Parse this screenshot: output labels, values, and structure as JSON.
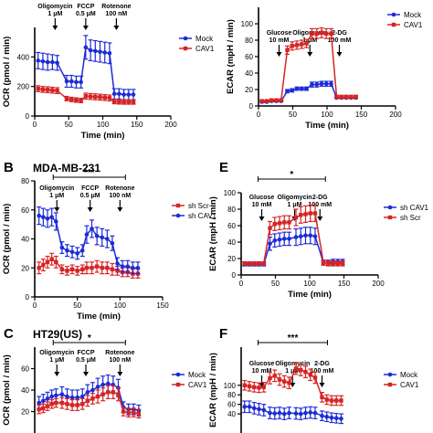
{
  "chart_data": [
    {
      "id": "A",
      "panel_letter": "",
      "title": "",
      "type": "line",
      "xlabel": "Time (min)",
      "ylabel": "OCR (pmol / min)",
      "xlim": [
        0,
        200
      ],
      "ylim": [
        0,
        600
      ],
      "xticks": [
        0,
        50,
        100,
        150,
        200
      ],
      "yticks": [
        0,
        200,
        400
      ],
      "significance": "",
      "annotations": [
        {
          "lines": [
            "Oligomycin",
            "1 μM"
          ],
          "x": 30
        },
        {
          "lines": [
            "FCCP",
            "0.5 μM"
          ],
          "x": 75
        },
        {
          "lines": [
            "Rotenone",
            "100 nM"
          ],
          "x": 120
        }
      ],
      "series": [
        {
          "name": "Mock",
          "color": "#1c2bd6",
          "marker": "circle",
          "x": [
            5,
            12,
            19,
            26,
            33,
            47,
            54,
            61,
            68,
            75,
            82,
            89,
            96,
            103,
            110,
            117,
            124,
            131,
            138,
            145
          ],
          "y": [
            375,
            370,
            365,
            365,
            360,
            235,
            235,
            230,
            230,
            465,
            445,
            440,
            435,
            430,
            425,
            150,
            150,
            145,
            145,
            145
          ],
          "err": [
            55,
            55,
            55,
            50,
            50,
            40,
            40,
            40,
            40,
            80,
            70,
            70,
            70,
            70,
            70,
            35,
            35,
            35,
            35,
            35
          ]
        },
        {
          "name": "CAV1",
          "color": "#d62424",
          "marker": "square",
          "x": [
            5,
            12,
            19,
            26,
            33,
            47,
            54,
            61,
            68,
            75,
            82,
            89,
            96,
            103,
            110,
            117,
            124,
            131,
            138,
            145
          ],
          "y": [
            185,
            180,
            178,
            175,
            172,
            118,
            112,
            108,
            105,
            135,
            132,
            130,
            128,
            125,
            122,
            98,
            96,
            95,
            95,
            95
          ],
          "err": [
            20,
            20,
            20,
            20,
            20,
            15,
            15,
            15,
            15,
            20,
            20,
            20,
            20,
            20,
            20,
            15,
            15,
            15,
            15,
            15
          ]
        }
      ]
    },
    {
      "id": "D",
      "panel_letter": "",
      "title": "",
      "type": "line",
      "xlabel": "Time (min)",
      "ylabel": "ECAR (mpH / min)",
      "xlim": [
        0,
        200
      ],
      "ylim": [
        0,
        120
      ],
      "xticks": [
        0,
        50,
        100,
        150,
        200
      ],
      "yticks": [
        0,
        20,
        40,
        60,
        80,
        100
      ],
      "significance": "",
      "annotations": [
        {
          "lines": [
            "Glucose",
            "10 mM"
          ],
          "x": 30
        },
        {
          "lines": [
            "Oligomycin",
            "1 μM"
          ],
          "x": 75
        },
        {
          "lines": [
            "2-DG",
            "100 mM"
          ],
          "x": 118
        }
      ],
      "series": [
        {
          "name": "Mock",
          "color": "#1c2bd6",
          "marker": "circle",
          "x": [
            5,
            12,
            19,
            26,
            33,
            42,
            49,
            56,
            63,
            70,
            78,
            85,
            92,
            99,
            106,
            114,
            121,
            128,
            135,
            142
          ],
          "y": [
            5,
            5,
            6,
            6,
            6,
            18,
            19,
            21,
            21,
            21,
            26,
            26,
            27,
            27,
            27,
            10,
            10,
            10,
            10,
            10
          ],
          "err": [
            1,
            1,
            1,
            1,
            1,
            2,
            2,
            2,
            2,
            2,
            3,
            3,
            3,
            3,
            3,
            1,
            1,
            1,
            1,
            1
          ]
        },
        {
          "name": "CAV1",
          "color": "#d62424",
          "marker": "square",
          "x": [
            5,
            12,
            19,
            26,
            33,
            42,
            49,
            56,
            63,
            70,
            78,
            85,
            92,
            99,
            106,
            114,
            121,
            128,
            135,
            142
          ],
          "y": [
            6,
            6,
            7,
            7,
            7,
            68,
            73,
            74,
            75,
            76,
            88,
            88,
            89,
            88,
            88,
            11,
            11,
            11,
            11,
            11
          ],
          "err": [
            1,
            1,
            1,
            1,
            1,
            5,
            5,
            5,
            5,
            5,
            6,
            6,
            6,
            6,
            6,
            2,
            2,
            2,
            2,
            2
          ]
        }
      ]
    },
    {
      "id": "B",
      "panel_letter": "B",
      "title": "MDA-MB-231",
      "type": "line",
      "xlabel": "Time (min)",
      "ylabel": "OCR (pmol / min)",
      "xlim": [
        0,
        150
      ],
      "ylim": [
        0,
        80
      ],
      "xticks": [
        0,
        50,
        100,
        150
      ],
      "yticks": [
        0,
        20,
        40,
        60,
        80
      ],
      "significance": "***",
      "annotations": [
        {
          "lines": [
            "Oligomycin",
            "1 μM"
          ],
          "x": 26
        },
        {
          "lines": [
            "FCCP",
            "0.5 μM"
          ],
          "x": 65
        },
        {
          "lines": [
            "Rotenone",
            "100 nM"
          ],
          "x": 100
        }
      ],
      "series": [
        {
          "name": "sh Scr",
          "color": "#d62424",
          "marker": "square",
          "x": [
            5,
            10,
            15,
            20,
            25,
            32,
            38,
            44,
            50,
            56,
            61,
            67,
            73,
            79,
            85,
            91,
            97,
            103,
            109,
            115,
            121
          ],
          "y": [
            20,
            22,
            24,
            26,
            24,
            19,
            18,
            19,
            18,
            19,
            20,
            20,
            21,
            20,
            20,
            19,
            18,
            17,
            17,
            16,
            16
          ],
          "err": [
            4,
            4,
            4,
            4,
            4,
            3,
            3,
            3,
            3,
            3,
            4,
            4,
            4,
            4,
            4,
            4,
            3,
            3,
            3,
            3,
            3
          ]
        },
        {
          "name": "sh CAV1",
          "color": "#1c2bd6",
          "marker": "circle",
          "x": [
            5,
            10,
            15,
            20,
            25,
            32,
            38,
            44,
            50,
            56,
            61,
            67,
            73,
            79,
            85,
            91,
            97,
            103,
            109,
            115,
            121
          ],
          "y": [
            56,
            55,
            54,
            55,
            52,
            34,
            32,
            31,
            30,
            32,
            43,
            47,
            42,
            41,
            40,
            37,
            23,
            21,
            21,
            20,
            20
          ],
          "err": [
            6,
            6,
            6,
            6,
            6,
            4,
            4,
            4,
            4,
            4,
            6,
            6,
            6,
            6,
            6,
            5,
            4,
            4,
            4,
            4,
            4
          ]
        }
      ]
    },
    {
      "id": "E",
      "panel_letter": "E",
      "title": "",
      "type": "line",
      "xlabel": "Time (min)",
      "ylabel": "ECAR (mpH / min)",
      "xlim": [
        0,
        200
      ],
      "ylim": [
        0,
        100
      ],
      "xticks": [
        0,
        50,
        100,
        150,
        200
      ],
      "yticks": [
        0,
        20,
        40,
        60,
        80,
        100
      ],
      "significance": "*",
      "annotations": [
        {
          "lines": [
            "Glucose",
            "10 mM"
          ],
          "x": 30
        },
        {
          "lines": [
            "Oligomycin",
            "1 μM"
          ],
          "x": 78
        },
        {
          "lines": [
            "2-DG",
            "100 mM"
          ],
          "x": 115
        }
      ],
      "series": [
        {
          "name": "sh CAV1",
          "color": "#1c2bd6",
          "marker": "circle",
          "x": [
            5,
            12,
            19,
            26,
            33,
            42,
            49,
            56,
            63,
            70,
            80,
            87,
            94,
            101,
            108,
            120,
            127,
            134,
            141,
            148
          ],
          "y": [
            13,
            13,
            13,
            13,
            13,
            38,
            42,
            43,
            44,
            44,
            46,
            47,
            48,
            48,
            47,
            15,
            15,
            16,
            16,
            16
          ],
          "err": [
            2,
            2,
            2,
            2,
            2,
            8,
            8,
            8,
            8,
            8,
            10,
            10,
            10,
            10,
            10,
            3,
            3,
            3,
            3,
            3
          ]
        },
        {
          "name": "sh Scr",
          "color": "#d62424",
          "marker": "square",
          "x": [
            5,
            12,
            19,
            26,
            33,
            42,
            49,
            56,
            63,
            70,
            80,
            87,
            94,
            101,
            108,
            120,
            127,
            134,
            141,
            148
          ],
          "y": [
            14,
            14,
            14,
            14,
            14,
            57,
            62,
            63,
            64,
            64,
            70,
            73,
            74,
            75,
            75,
            15,
            14,
            14,
            14,
            14
          ],
          "err": [
            2,
            2,
            2,
            2,
            2,
            8,
            8,
            8,
            8,
            8,
            10,
            10,
            10,
            10,
            10,
            3,
            3,
            3,
            3,
            3
          ]
        }
      ]
    },
    {
      "id": "C",
      "panel_letter": "C",
      "title": "HT29(US)",
      "type": "line",
      "xlabel": "",
      "ylabel": "OCR (pmol / min)",
      "xlim": [
        0,
        150
      ],
      "ylim": [
        0,
        80
      ],
      "xticks": [],
      "yticks": [
        20,
        40,
        60
      ],
      "significance": "*",
      "annotations": [
        {
          "lines": [
            "Oligomycin",
            "1 μM"
          ],
          "x": 26
        },
        {
          "lines": [
            "FCCP",
            "0.5 μM"
          ],
          "x": 60
        },
        {
          "lines": [
            "Rotenone",
            "100 nM"
          ],
          "x": 100
        }
      ],
      "series": [
        {
          "name": "Mock",
          "color": "#1c2bd6",
          "marker": "circle",
          "x": [
            5,
            10,
            15,
            20,
            25,
            32,
            38,
            44,
            50,
            56,
            62,
            68,
            74,
            80,
            86,
            92,
            98,
            104,
            110,
            116,
            122
          ],
          "y": [
            28,
            30,
            32,
            34,
            35,
            36,
            34,
            33,
            33,
            34,
            38,
            40,
            43,
            45,
            46,
            45,
            42,
            24,
            22,
            22,
            21
          ],
          "err": [
            6,
            6,
            6,
            6,
            6,
            7,
            7,
            7,
            7,
            7,
            7,
            7,
            8,
            8,
            8,
            8,
            8,
            5,
            5,
            5,
            5
          ]
        },
        {
          "name": "CAV1",
          "color": "#d62424",
          "marker": "square",
          "x": [
            5,
            10,
            15,
            20,
            25,
            32,
            38,
            44,
            50,
            56,
            62,
            68,
            74,
            80,
            86,
            92,
            98,
            104,
            110,
            116,
            122
          ],
          "y": [
            22,
            23,
            25,
            27,
            28,
            28,
            27,
            26,
            26,
            27,
            30,
            32,
            34,
            36,
            38,
            38,
            36,
            20,
            19,
            19,
            18
          ],
          "err": [
            4,
            4,
            4,
            4,
            4,
            5,
            5,
            5,
            5,
            5,
            5,
            5,
            6,
            6,
            6,
            6,
            6,
            4,
            4,
            4,
            4
          ]
        }
      ]
    },
    {
      "id": "F",
      "panel_letter": "F",
      "title": "",
      "type": "line",
      "xlabel": "",
      "ylabel": "ECAR (mpH / min)",
      "xlim": [
        0,
        200
      ],
      "ylim": [
        0,
        180
      ],
      "xticks": [],
      "yticks": [
        40,
        60,
        80,
        100
      ],
      "significance": "***",
      "annotations": [
        {
          "lines": [
            "Glucose",
            "10 mM"
          ],
          "x": 30
        },
        {
          "lines": [
            "Oligomycin",
            "1 μM"
          ],
          "x": 75
        },
        {
          "lines": [
            "2-DG",
            "100 mM"
          ],
          "x": 118
        }
      ],
      "series": [
        {
          "name": "Mock",
          "color": "#1c2bd6",
          "marker": "circle",
          "x": [
            5,
            12,
            19,
            26,
            33,
            42,
            49,
            56,
            63,
            70,
            80,
            87,
            94,
            101,
            108,
            118,
            125,
            132,
            139,
            146
          ],
          "y": [
            55,
            55,
            52,
            50,
            48,
            42,
            41,
            42,
            40,
            42,
            41,
            40,
            42,
            43,
            42,
            36,
            34,
            32,
            31,
            30
          ],
          "err": [
            12,
            12,
            12,
            12,
            12,
            12,
            12,
            12,
            12,
            12,
            12,
            12,
            12,
            12,
            12,
            10,
            10,
            10,
            10,
            10
          ]
        },
        {
          "name": "CAV1",
          "color": "#d62424",
          "marker": "square",
          "x": [
            5,
            12,
            19,
            26,
            33,
            42,
            49,
            56,
            63,
            70,
            80,
            87,
            94,
            101,
            108,
            118,
            125,
            132,
            139,
            146
          ],
          "y": [
            100,
            98,
            96,
            95,
            96,
            115,
            120,
            112,
            108,
            105,
            135,
            132,
            128,
            122,
            116,
            75,
            70,
            68,
            68,
            68
          ],
          "err": [
            10,
            10,
            10,
            10,
            10,
            12,
            12,
            12,
            12,
            12,
            12,
            12,
            12,
            12,
            12,
            10,
            10,
            10,
            10,
            10
          ]
        }
      ]
    }
  ]
}
